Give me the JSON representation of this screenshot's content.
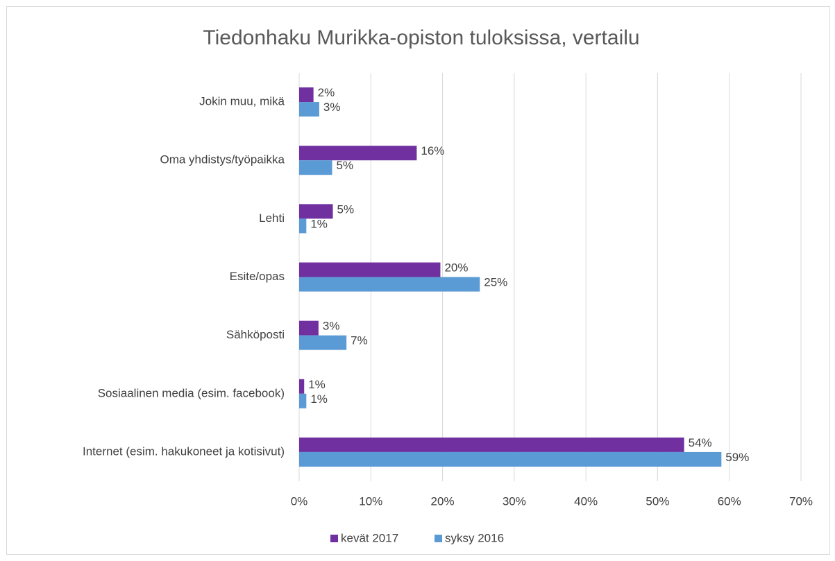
{
  "chart_data": {
    "type": "hbar",
    "title": "Tiedonhaku Murikka-opiston tuloksissa, vertailu",
    "categories": [
      "Jokin muu, mikä",
      "Oma yhdistys/työpaikka",
      "Lehti",
      "Esite/opas",
      "Sähköposti",
      "Sosiaalinen media (esim. facebook)",
      "Internet (esim. hakukoneet ja kotisivut)"
    ],
    "series": [
      {
        "name": "kevät 2017",
        "color": "#7030a0",
        "values": [
          2.0,
          16.4,
          4.7,
          19.7,
          2.7,
          0.7,
          53.7
        ],
        "value_labels": [
          "2%",
          "16%",
          "5%",
          "20%",
          "3%",
          "1%",
          "54%"
        ]
      },
      {
        "name": "syksy 2016",
        "color": "#5b9bd5",
        "values": [
          2.8,
          4.6,
          1.0,
          25.2,
          6.6,
          1.0,
          58.9
        ],
        "value_labels": [
          "3%",
          "5%",
          "1%",
          "25%",
          "7%",
          "1%",
          "59%"
        ]
      }
    ],
    "xlim": [
      0,
      70
    ],
    "xticks": [
      {
        "value": 0,
        "label": "0%"
      },
      {
        "value": 10,
        "label": "10%"
      },
      {
        "value": 20,
        "label": "20%"
      },
      {
        "value": 30,
        "label": "30%"
      },
      {
        "value": 40,
        "label": "40%"
      },
      {
        "value": 50,
        "label": "50%"
      },
      {
        "value": 60,
        "label": "60%"
      },
      {
        "value": 70,
        "label": "70%"
      }
    ],
    "grid": true,
    "legend": "bottom"
  }
}
